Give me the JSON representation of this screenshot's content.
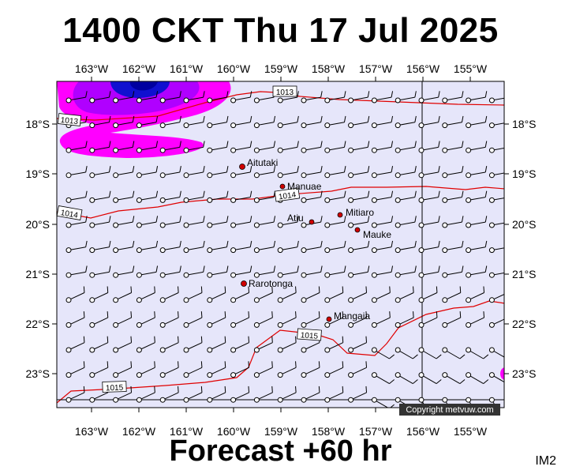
{
  "title": "1400 CKT Thu 17 Jul 2025",
  "subtitle": "Forecast +60 hr",
  "tag": "IM2",
  "copyright": "Copyright metvuw.com",
  "colors": {
    "background": "#e6e6fa",
    "isobar": "#e00000",
    "rain_light": "#ff00ff",
    "rain_mid": "#b000ff",
    "rain_heavy": "#1010d0",
    "town_marker": "#d00000",
    "barb": "#000000"
  },
  "longitude_labels": [
    "163°W",
    "162°W",
    "161°W",
    "160°W",
    "159°W",
    "158°W",
    "157°W",
    "156°W",
    "155°W"
  ],
  "latitude_labels": [
    "18°S",
    "19°S",
    "20°S",
    "21°S",
    "22°S",
    "23°S"
  ],
  "isobar_labels": [
    "1013",
    "1013",
    "1014",
    "1014",
    "1015",
    "1015"
  ],
  "places": [
    {
      "name": "Aitutaki"
    },
    {
      "name": "Manuae"
    },
    {
      "name": "Atiu"
    },
    {
      "name": "Mitiaro"
    },
    {
      "name": "Mauke"
    },
    {
      "name": "Rarotonga"
    },
    {
      "name": "Mangaia"
    }
  ],
  "wind_field": {
    "description_note_free": true,
    "rows": 13,
    "cols": 20
  }
}
